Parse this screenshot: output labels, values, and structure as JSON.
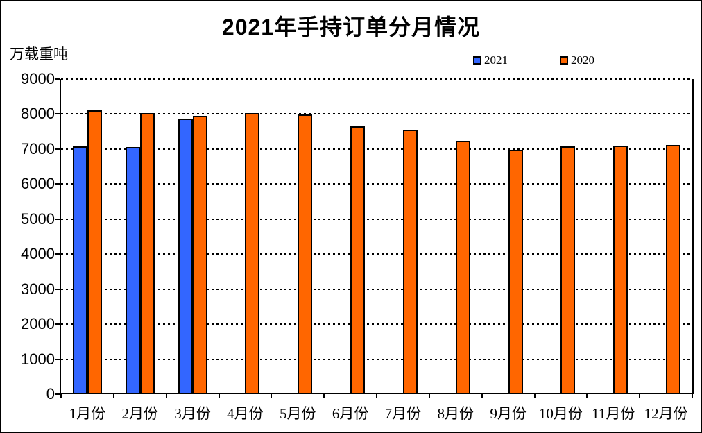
{
  "chart_data": {
    "type": "bar",
    "title": "2021年手持订单分月情况",
    "ylabel": "万载重吨",
    "xlabel": "",
    "categories": [
      "1月份",
      "2月份",
      "3月份",
      "4月份",
      "5月份",
      "6月份",
      "7月份",
      "8月份",
      "9月份",
      "10月份",
      "11月份",
      "12月份"
    ],
    "series": [
      {
        "name": "2021",
        "color": "#3366FF",
        "values": [
          7084,
          7049,
          7871,
          null,
          null,
          null,
          null,
          null,
          null,
          null,
          null,
          null
        ]
      },
      {
        "name": "2020",
        "color": "#FF6600",
        "values": [
          8099,
          8036,
          7955,
          8031,
          7982,
          7654,
          7551,
          7244,
          6969,
          7082,
          7093,
          7111
        ]
      }
    ],
    "ylim": [
      0,
      9000
    ],
    "yticks": [
      0,
      1000,
      2000,
      3000,
      4000,
      5000,
      6000,
      7000,
      8000,
      9000
    ],
    "grid": "horizontal-dashed",
    "gridline_color": "#000000",
    "bar_border_color": "#000000",
    "legend_position": "top",
    "background_color": "#FFFFFF",
    "frame_color": "#000000"
  }
}
